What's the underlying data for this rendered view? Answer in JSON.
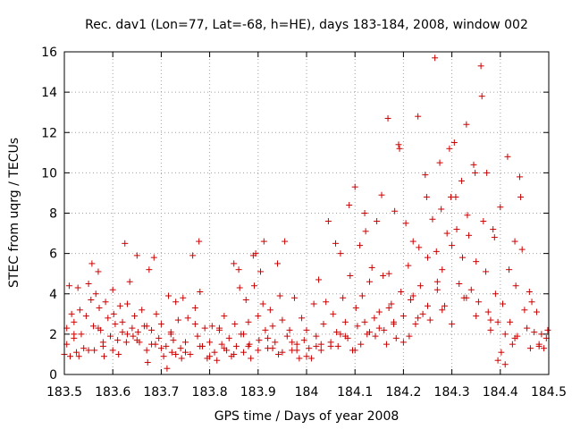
{
  "chart_data": {
    "type": "scatter",
    "title": "Rec. dav1 (Lon=77, Lat=-68, h=HE), days 183-184, 2008, window 002",
    "xlabel": "GPS time / Days of year 2008",
    "ylabel": "STEC from uqrg / TECUs",
    "xlim": [
      183.5,
      184.5
    ],
    "ylim": [
      0,
      16
    ],
    "x_ticks": [
      "183.5",
      "183.6",
      "183.7",
      "183.8",
      "183.9",
      "184",
      "184.1",
      "184.2",
      "184.3",
      "184.4",
      "184.5"
    ],
    "y_ticks": [
      "0",
      "2",
      "4",
      "6",
      "8",
      "10",
      "12",
      "14",
      "16"
    ],
    "grid": true,
    "legend": "none",
    "marker": "plus",
    "color": "#cc0000",
    "series": [
      {
        "points": [
          [
            183.505,
            2.3
          ],
          [
            183.51,
            4.4
          ],
          [
            183.515,
            3.0
          ],
          [
            183.52,
            1.8
          ],
          [
            183.525,
            1.1
          ],
          [
            183.505,
            1.5
          ],
          [
            183.512,
            0.9
          ],
          [
            183.52,
            2.6
          ],
          [
            183.528,
            4.3
          ],
          [
            183.532,
            3.2
          ],
          [
            183.535,
            2.0
          ],
          [
            183.54,
            1.3
          ],
          [
            183.545,
            2.9
          ],
          [
            183.55,
            4.5
          ],
          [
            183.555,
            3.7
          ],
          [
            183.557,
            5.5
          ],
          [
            183.56,
            2.4
          ],
          [
            183.562,
            1.2
          ],
          [
            183.565,
            4.0
          ],
          [
            183.57,
            5.1
          ],
          [
            183.572,
            3.3
          ],
          [
            183.575,
            2.2
          ],
          [
            183.58,
            1.4
          ],
          [
            183.582,
            0.9
          ],
          [
            183.585,
            3.6
          ],
          [
            183.59,
            2.8
          ],
          [
            183.595,
            1.9
          ],
          [
            183.6,
            4.2
          ],
          [
            183.602,
            3.0
          ],
          [
            183.605,
            2.5
          ],
          [
            183.61,
            1.7
          ],
          [
            183.612,
            1.0
          ],
          [
            183.615,
            3.4
          ],
          [
            183.62,
            2.1
          ],
          [
            183.625,
            6.5
          ],
          [
            183.628,
            1.6
          ],
          [
            183.63,
            3.5
          ],
          [
            183.635,
            4.6
          ],
          [
            183.64,
            2.3
          ],
          [
            183.642,
            1.9
          ],
          [
            183.645,
            2.9
          ],
          [
            183.65,
            5.9
          ],
          [
            183.652,
            2.1
          ],
          [
            183.655,
            1.6
          ],
          [
            183.66,
            3.2
          ],
          [
            183.665,
            2.4
          ],
          [
            183.67,
            1.2
          ],
          [
            183.672,
            0.6
          ],
          [
            183.675,
            5.2
          ],
          [
            183.68,
            2.2
          ],
          [
            183.685,
            5.8
          ],
          [
            183.688,
            1.5
          ],
          [
            183.69,
            3.0
          ],
          [
            183.695,
            1.8
          ],
          [
            183.7,
            2.5
          ],
          [
            183.705,
            0.9
          ],
          [
            183.71,
            1.4
          ],
          [
            183.712,
            0.3
          ],
          [
            183.715,
            3.9
          ],
          [
            183.72,
            2.0
          ],
          [
            183.722,
            1.1
          ],
          [
            183.725,
            1.7
          ],
          [
            183.73,
            3.6
          ],
          [
            183.735,
            2.7
          ],
          [
            183.74,
            1.3
          ],
          [
            183.742,
            0.8
          ],
          [
            183.745,
            3.8
          ],
          [
            183.75,
            1.6
          ],
          [
            183.755,
            2.8
          ],
          [
            183.76,
            1.0
          ],
          [
            183.765,
            5.9
          ],
          [
            183.77,
            3.3
          ],
          [
            183.775,
            1.9
          ],
          [
            183.778,
            6.6
          ],
          [
            183.78,
            4.1
          ],
          [
            183.785,
            1.4
          ],
          [
            183.79,
            2.3
          ],
          [
            183.795,
            0.8
          ],
          [
            183.8,
            1.6
          ],
          [
            183.805,
            2.4
          ],
          [
            183.81,
            1.1
          ],
          [
            183.815,
            0.7
          ],
          [
            183.82,
            2.2
          ],
          [
            183.825,
            1.5
          ],
          [
            183.83,
            2.9
          ],
          [
            183.835,
            1.2
          ],
          [
            183.84,
            1.8
          ],
          [
            183.845,
            0.9
          ],
          [
            183.85,
            5.5
          ],
          [
            183.852,
            2.5
          ],
          [
            183.855,
            1.4
          ],
          [
            183.86,
            5.2
          ],
          [
            183.862,
            4.3
          ],
          [
            183.865,
            2.0
          ],
          [
            183.87,
            1.1
          ],
          [
            183.875,
            3.7
          ],
          [
            183.88,
            2.6
          ],
          [
            183.882,
            1.5
          ],
          [
            183.885,
            0.8
          ],
          [
            183.89,
            5.9
          ],
          [
            183.892,
            4.4
          ],
          [
            183.895,
            6.0
          ],
          [
            183.9,
            2.9
          ],
          [
            183.902,
            1.7
          ],
          [
            183.905,
            5.1
          ],
          [
            183.91,
            3.5
          ],
          [
            183.912,
            6.6
          ],
          [
            183.915,
            2.2
          ],
          [
            183.92,
            1.3
          ],
          [
            183.925,
            3.2
          ],
          [
            183.93,
            2.4
          ],
          [
            183.935,
            1.6
          ],
          [
            183.94,
            5.5
          ],
          [
            183.942,
            1.0
          ],
          [
            183.945,
            3.9
          ],
          [
            183.95,
            2.7
          ],
          [
            183.955,
            6.6
          ],
          [
            183.96,
            1.9
          ],
          [
            183.965,
            2.2
          ],
          [
            183.97,
            1.2
          ],
          [
            183.975,
            3.8
          ],
          [
            183.98,
            1.5
          ],
          [
            183.985,
            0.8
          ],
          [
            183.99,
            2.8
          ],
          [
            183.995,
            1.7
          ],
          [
            184.0,
            2.2
          ],
          [
            184.005,
            1.3
          ],
          [
            184.01,
            0.8
          ],
          [
            184.015,
            3.5
          ],
          [
            184.02,
            1.9
          ],
          [
            184.025,
            4.7
          ],
          [
            184.03,
            1.2
          ],
          [
            184.035,
            2.5
          ],
          [
            184.04,
            3.6
          ],
          [
            184.045,
            7.6
          ],
          [
            184.05,
            1.6
          ],
          [
            184.055,
            3.0
          ],
          [
            184.06,
            6.5
          ],
          [
            184.062,
            2.1
          ],
          [
            184.065,
            1.4
          ],
          [
            184.07,
            6.0
          ],
          [
            184.075,
            3.8
          ],
          [
            184.08,
            2.6
          ],
          [
            184.085,
            1.8
          ],
          [
            184.088,
            8.4
          ],
          [
            184.09,
            4.9
          ],
          [
            184.095,
            1.2
          ],
          [
            184.1,
            9.3
          ],
          [
            184.102,
            3.3
          ],
          [
            184.105,
            2.4
          ],
          [
            184.11,
            6.4
          ],
          [
            184.112,
            1.5
          ],
          [
            184.115,
            3.9
          ],
          [
            184.12,
            8.0
          ],
          [
            184.122,
            7.1
          ],
          [
            184.125,
            2.0
          ],
          [
            184.13,
            4.6
          ],
          [
            184.135,
            5.3
          ],
          [
            184.14,
            2.8
          ],
          [
            184.142,
            1.9
          ],
          [
            184.145,
            7.6
          ],
          [
            184.15,
            3.1
          ],
          [
            184.155,
            8.9
          ],
          [
            184.158,
            4.9
          ],
          [
            184.16,
            2.2
          ],
          [
            184.165,
            1.5
          ],
          [
            184.168,
            12.7
          ],
          [
            184.17,
            5.0
          ],
          [
            184.175,
            3.5
          ],
          [
            184.18,
            2.6
          ],
          [
            184.182,
            8.1
          ],
          [
            184.185,
            1.8
          ],
          [
            184.19,
            11.4
          ],
          [
            184.192,
            11.2
          ],
          [
            184.195,
            4.1
          ],
          [
            184.2,
            2.9
          ],
          [
            184.205,
            7.5
          ],
          [
            184.21,
            5.4
          ],
          [
            184.212,
            1.9
          ],
          [
            184.215,
            3.7
          ],
          [
            184.22,
            6.6
          ],
          [
            184.225,
            2.5
          ],
          [
            184.23,
            12.8
          ],
          [
            184.232,
            6.3
          ],
          [
            184.235,
            4.4
          ],
          [
            184.24,
            3.0
          ],
          [
            184.245,
            9.9
          ],
          [
            184.248,
            8.8
          ],
          [
            184.25,
            5.8
          ],
          [
            184.255,
            2.7
          ],
          [
            184.26,
            7.7
          ],
          [
            184.265,
            15.7
          ],
          [
            184.268,
            6.1
          ],
          [
            184.27,
            4.6
          ],
          [
            184.275,
            10.5
          ],
          [
            184.278,
            8.2
          ],
          [
            184.28,
            5.2
          ],
          [
            184.285,
            3.4
          ],
          [
            184.29,
            7.0
          ],
          [
            184.295,
            11.2
          ],
          [
            184.298,
            8.8
          ],
          [
            184.3,
            6.4
          ],
          [
            184.305,
            11.5
          ],
          [
            184.308,
            8.8
          ],
          [
            184.31,
            7.2
          ],
          [
            184.315,
            4.5
          ],
          [
            184.32,
            9.6
          ],
          [
            184.322,
            5.8
          ],
          [
            184.325,
            3.8
          ],
          [
            184.33,
            12.4
          ],
          [
            184.332,
            7.9
          ],
          [
            184.335,
            6.9
          ],
          [
            184.34,
            4.2
          ],
          [
            184.345,
            10.4
          ],
          [
            184.348,
            10.0
          ],
          [
            184.35,
            5.6
          ],
          [
            184.355,
            3.6
          ],
          [
            184.36,
            15.3
          ],
          [
            184.362,
            13.8
          ],
          [
            184.365,
            7.6
          ],
          [
            184.37,
            5.1
          ],
          [
            184.372,
            10.0
          ],
          [
            184.375,
            3.1
          ],
          [
            184.38,
            2.2
          ],
          [
            184.385,
            7.2
          ],
          [
            184.388,
            6.8
          ],
          [
            184.39,
            4.0
          ],
          [
            184.395,
            2.6
          ],
          [
            184.4,
            8.3
          ],
          [
            184.402,
            1.1
          ],
          [
            184.405,
            3.5
          ],
          [
            184.41,
            2.0
          ],
          [
            184.415,
            10.8
          ],
          [
            184.418,
            5.2
          ],
          [
            184.42,
            2.6
          ],
          [
            184.425,
            1.5
          ],
          [
            184.43,
            6.6
          ],
          [
            184.432,
            4.4
          ],
          [
            184.435,
            1.9
          ],
          [
            184.44,
            9.8
          ],
          [
            184.442,
            8.8
          ],
          [
            184.445,
            6.2
          ],
          [
            184.45,
            3.2
          ],
          [
            184.455,
            2.3
          ],
          [
            184.46,
            4.1
          ],
          [
            184.462,
            1.3
          ],
          [
            184.465,
            3.6
          ],
          [
            184.47,
            2.1
          ],
          [
            184.475,
            3.1
          ],
          [
            184.48,
            1.5
          ],
          [
            184.485,
            2.0
          ],
          [
            184.49,
            1.3
          ],
          [
            184.495,
            1.8
          ],
          [
            184.498,
            2.2
          ],
          [
            184.41,
            0.5
          ],
          [
            184.395,
            0.7
          ],
          [
            184.35,
            2.9
          ],
          [
            184.3,
            2.5
          ],
          [
            184.25,
            3.4
          ],
          [
            184.2,
            1.6
          ],
          [
            184.15,
            2.3
          ],
          [
            184.1,
            1.2
          ],
          [
            184.05,
            1.4
          ],
          [
            184.0,
            0.9
          ],
          [
            183.95,
            1.1
          ],
          [
            183.9,
            1.2
          ],
          [
            183.85,
            1.0
          ],
          [
            183.8,
            0.9
          ],
          [
            183.75,
            1.1
          ],
          [
            183.7,
            1.3
          ],
          [
            183.65,
            1.7
          ],
          [
            183.6,
            1.2
          ],
          [
            183.55,
            1.2
          ],
          [
            183.5,
            1.0
          ],
          [
            183.53,
            0.9
          ],
          [
            183.58,
            1.6
          ],
          [
            183.63,
            2.0
          ],
          [
            183.68,
            1.5
          ],
          [
            183.73,
            1.0
          ],
          [
            183.78,
            1.4
          ],
          [
            183.83,
            1.3
          ],
          [
            183.88,
            1.4
          ],
          [
            183.93,
            1.3
          ],
          [
            183.98,
            1.2
          ],
          [
            184.03,
            1.5
          ],
          [
            184.08,
            1.9
          ],
          [
            184.13,
            2.1
          ],
          [
            184.18,
            2.5
          ],
          [
            184.23,
            2.8
          ],
          [
            184.28,
            3.2
          ],
          [
            184.33,
            3.8
          ],
          [
            184.38,
            2.7
          ],
          [
            184.43,
            1.8
          ],
          [
            184.48,
            1.4
          ],
          [
            184.27,
            4.2
          ],
          [
            184.22,
            3.9
          ],
          [
            184.17,
            3.3
          ],
          [
            184.12,
            2.6
          ],
          [
            184.07,
            2.0
          ],
          [
            184.02,
            1.4
          ],
          [
            183.97,
            1.6
          ],
          [
            183.92,
            1.8
          ],
          [
            183.87,
            2.0
          ],
          [
            183.82,
            2.3
          ],
          [
            183.77,
            2.5
          ],
          [
            183.72,
            2.1
          ],
          [
            183.67,
            2.4
          ],
          [
            183.62,
            2.6
          ],
          [
            183.57,
            2.3
          ],
          [
            183.52,
            2.0
          ]
        ]
      }
    ]
  }
}
